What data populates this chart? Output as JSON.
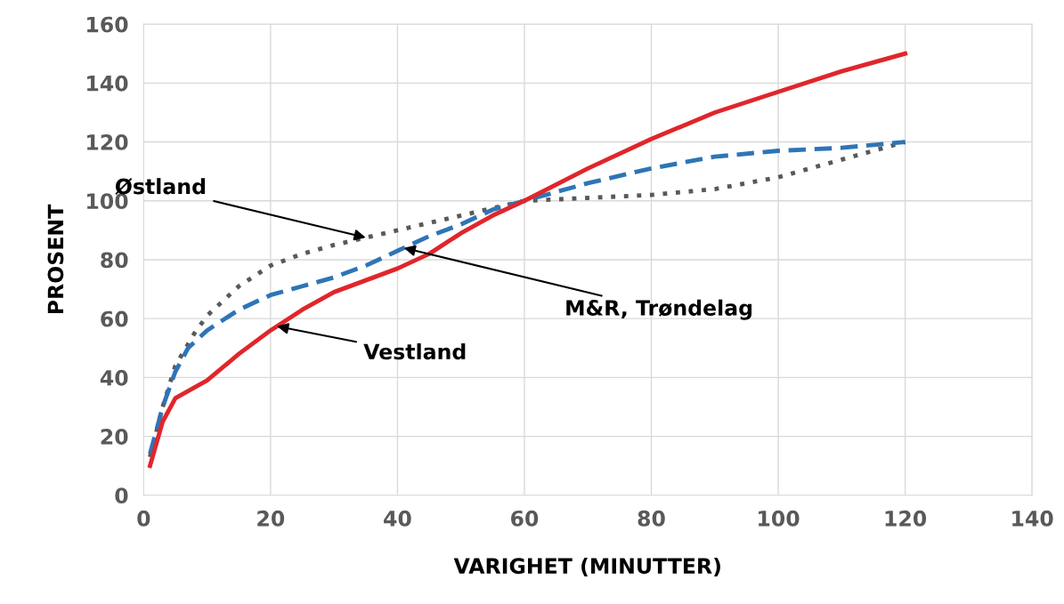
{
  "chart_data": {
    "type": "line",
    "xlabel": "VARIGHET (MINUTTER)",
    "ylabel": "PROSENT",
    "xlim": [
      0,
      140
    ],
    "xticks": [
      0,
      20,
      40,
      60,
      80,
      100,
      120,
      140
    ],
    "ylim": [
      0,
      160
    ],
    "yticks": [
      0,
      20,
      40,
      60,
      80,
      100,
      120,
      140,
      160
    ],
    "grid": true,
    "series": [
      {
        "color": "#595959",
        "line_style": "dotted",
        "x": [
          1,
          3,
          5,
          8,
          10,
          15,
          20,
          25,
          30,
          40,
          50,
          60,
          70,
          80,
          90,
          100,
          110,
          120
        ],
        "values": [
          13,
          30,
          44,
          55,
          61,
          71,
          78,
          82,
          85,
          90,
          95,
          100,
          101,
          102,
          104,
          108,
          114,
          120
        ]
      },
      {
        "color": "#2e75b6",
        "line_style": "dashed",
        "x": [
          1,
          3,
          5,
          7,
          10,
          15,
          20,
          25,
          30,
          35,
          40,
          45,
          50,
          55,
          60,
          70,
          80,
          90,
          100,
          110,
          120
        ],
        "values": [
          14,
          30,
          42,
          50,
          56,
          63,
          68,
          71,
          74,
          78,
          83,
          88,
          92,
          97,
          100,
          106,
          111,
          115,
          117,
          118,
          120
        ]
      },
      {
        "color": "#e0262b",
        "line_style": "solid",
        "x": [
          1,
          3,
          5,
          10,
          15,
          20,
          25,
          30,
          35,
          40,
          45,
          50,
          55,
          60,
          70,
          80,
          90,
          100,
          110,
          120
        ],
        "values": [
          10,
          25,
          33,
          39,
          48,
          56,
          63,
          69,
          73,
          77,
          82,
          89,
          95,
          100,
          111,
          121,
          130,
          137,
          144,
          150
        ]
      }
    ],
    "annotations": [
      {
        "text": "Østland",
        "x": 35,
        "y": 87.5
      },
      {
        "text": "M&R, Trøndelag",
        "x": 41,
        "y": 84
      },
      {
        "text": "Vestland",
        "x": 21,
        "y": 57.4
      }
    ]
  }
}
